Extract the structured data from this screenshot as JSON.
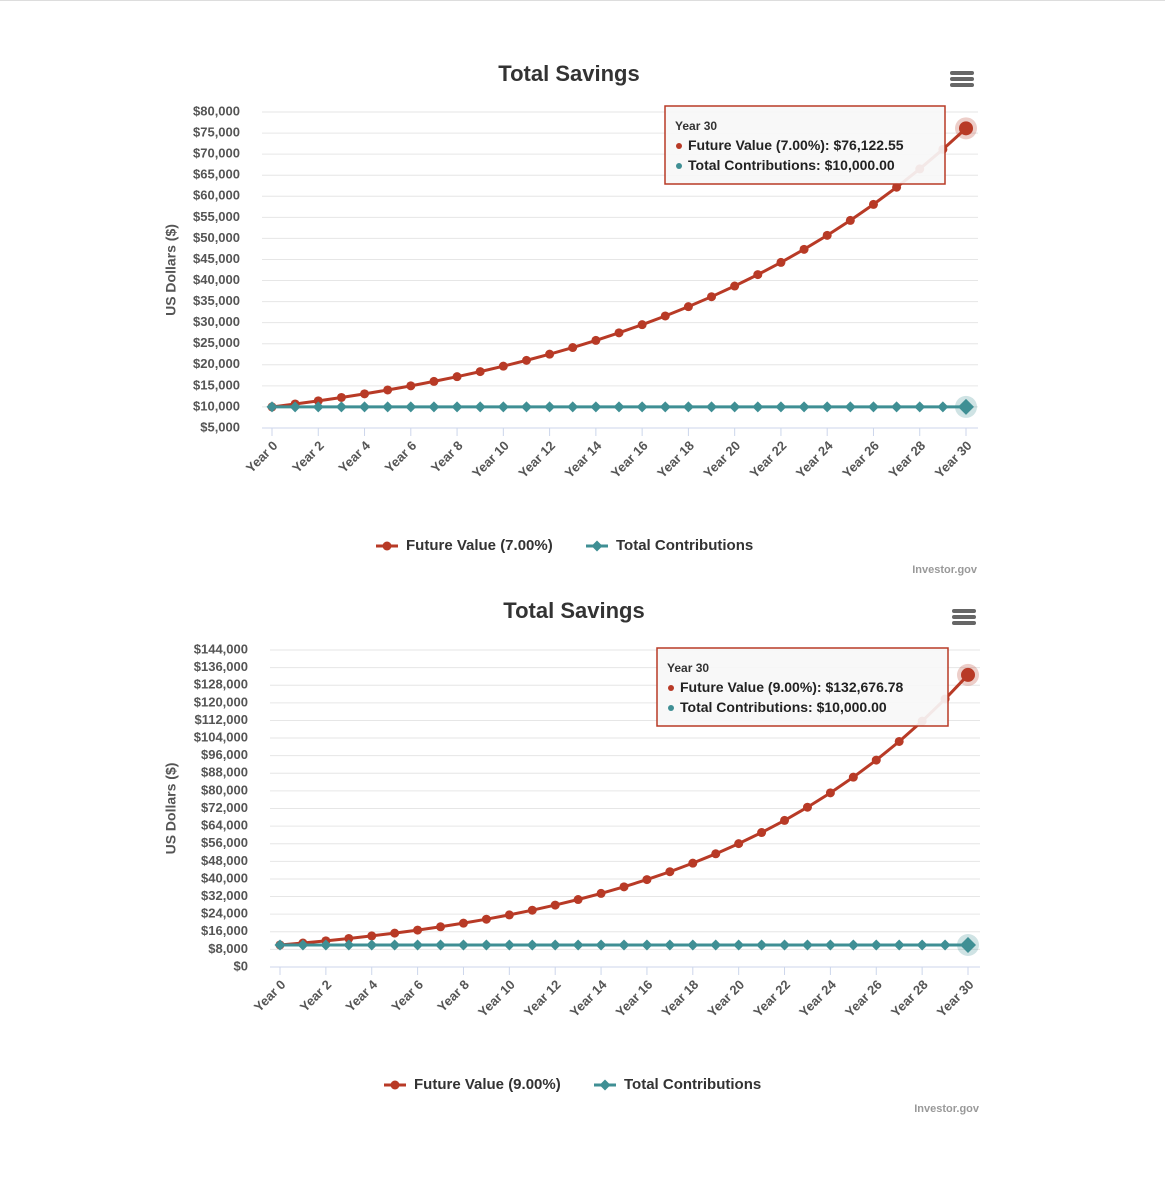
{
  "chart_data": [
    {
      "type": "line",
      "title": "Total Savings",
      "y_label": "US Dollars ($)",
      "credit": "Investor.gov",
      "categories": [
        "Year 0",
        null,
        "Year 2",
        null,
        "Year 4",
        null,
        "Year 6",
        null,
        "Year 8",
        null,
        "Year 10",
        null,
        "Year 12",
        null,
        "Year 14",
        null,
        "Year 16",
        null,
        "Year 18",
        null,
        "Year 20",
        null,
        "Year 22",
        null,
        "Year 24",
        null,
        "Year 26",
        null,
        "Year 28",
        null,
        "Year 30"
      ],
      "series": [
        {
          "name": "Future Value (7.00%)",
          "color": "#b83a26",
          "marker": "circle",
          "values": [
            10000,
            10700,
            11449,
            12250,
            13108,
            14026,
            15007,
            16058,
            17182,
            18385,
            19672,
            21049,
            22522,
            24098,
            25785,
            27590,
            29522,
            31588,
            33799,
            36165,
            38697,
            41406,
            44304,
            47405,
            50724,
            54274,
            58074,
            62139,
            66488,
            71143,
            76122.55
          ]
        },
        {
          "name": "Total Contributions",
          "color": "#3f8f94",
          "marker": "diamond",
          "values": [
            10000,
            10000,
            10000,
            10000,
            10000,
            10000,
            10000,
            10000,
            10000,
            10000,
            10000,
            10000,
            10000,
            10000,
            10000,
            10000,
            10000,
            10000,
            10000,
            10000,
            10000,
            10000,
            10000,
            10000,
            10000,
            10000,
            10000,
            10000,
            10000,
            10000,
            10000
          ]
        }
      ],
      "ylim": [
        5000,
        80000
      ],
      "yticks": [
        {
          "value": 5000,
          "label": "$5,000"
        },
        {
          "value": 10000,
          "label": "$10,000"
        },
        {
          "value": 15000,
          "label": "$15,000"
        },
        {
          "value": 20000,
          "label": "$20,000"
        },
        {
          "value": 25000,
          "label": "$25,000"
        },
        {
          "value": 30000,
          "label": "$30,000"
        },
        {
          "value": 35000,
          "label": "$35,000"
        },
        {
          "value": 40000,
          "label": "$40,000"
        },
        {
          "value": 45000,
          "label": "$45,000"
        },
        {
          "value": 50000,
          "label": "$50,000"
        },
        {
          "value": 55000,
          "label": "$55,000"
        },
        {
          "value": 60000,
          "label": "$60,000"
        },
        {
          "value": 65000,
          "label": "$65,000"
        },
        {
          "value": 70000,
          "label": "$70,000"
        },
        {
          "value": 75000,
          "label": "$75,000"
        },
        {
          "value": 80000,
          "label": "$80,000"
        }
      ],
      "grid": true,
      "tooltip": {
        "title": "Year 30",
        "lines": [
          {
            "name": "Future Value (7.00%):",
            "value_label": "$76,122.55"
          },
          {
            "name": "Total Contributions:",
            "value_label": "$10,000.00"
          }
        ]
      }
    },
    {
      "type": "line",
      "title": "Total Savings",
      "y_label": "US Dollars ($)",
      "credit": "Investor.gov",
      "categories": [
        "Year 0",
        null,
        "Year 2",
        null,
        "Year 4",
        null,
        "Year 6",
        null,
        "Year 8",
        null,
        "Year 10",
        null,
        "Year 12",
        null,
        "Year 14",
        null,
        "Year 16",
        null,
        "Year 18",
        null,
        "Year 20",
        null,
        "Year 22",
        null,
        "Year 24",
        null,
        "Year 26",
        null,
        "Year 28",
        null,
        "Year 30"
      ],
      "series": [
        {
          "name": "Future Value (9.00%)",
          "color": "#b83a26",
          "marker": "circle",
          "values": [
            10000,
            10900,
            11881,
            12950,
            14116,
            15386,
            16771,
            18280,
            19926,
            21719,
            23674,
            25804,
            28127,
            30658,
            33417,
            36425,
            39703,
            43276,
            47171,
            51417,
            56044,
            61088,
            66586,
            72579,
            79111,
            86231,
            93992,
            102451,
            111671,
            121722,
            132676.78
          ]
        },
        {
          "name": "Total Contributions",
          "color": "#3f8f94",
          "marker": "diamond",
          "values": [
            10000,
            10000,
            10000,
            10000,
            10000,
            10000,
            10000,
            10000,
            10000,
            10000,
            10000,
            10000,
            10000,
            10000,
            10000,
            10000,
            10000,
            10000,
            10000,
            10000,
            10000,
            10000,
            10000,
            10000,
            10000,
            10000,
            10000,
            10000,
            10000,
            10000,
            10000
          ]
        }
      ],
      "ylim": [
        0,
        144000
      ],
      "yticks": [
        {
          "value": 0,
          "label": "$0"
        },
        {
          "value": 8000,
          "label": "$8,000"
        },
        {
          "value": 16000,
          "label": "$16,000"
        },
        {
          "value": 24000,
          "label": "$24,000"
        },
        {
          "value": 32000,
          "label": "$32,000"
        },
        {
          "value": 40000,
          "label": "$40,000"
        },
        {
          "value": 48000,
          "label": "$48,000"
        },
        {
          "value": 56000,
          "label": "$56,000"
        },
        {
          "value": 64000,
          "label": "$64,000"
        },
        {
          "value": 72000,
          "label": "$72,000"
        },
        {
          "value": 80000,
          "label": "$80,000"
        },
        {
          "value": 88000,
          "label": "$88,000"
        },
        {
          "value": 96000,
          "label": "$96,000"
        },
        {
          "value": 104000,
          "label": "$104,000"
        },
        {
          "value": 112000,
          "label": "$112,000"
        },
        {
          "value": 120000,
          "label": "$120,000"
        },
        {
          "value": 128000,
          "label": "$128,000"
        },
        {
          "value": 136000,
          "label": "$136,000"
        },
        {
          "value": 144000,
          "label": "$144,000"
        }
      ],
      "grid": true,
      "tooltip": {
        "title": "Year 30",
        "lines": [
          {
            "name": "Future Value (9.00%):",
            "value_label": "$132,676.78"
          },
          {
            "name": "Total Contributions:",
            "value_label": "$10,000.00"
          }
        ]
      }
    }
  ]
}
